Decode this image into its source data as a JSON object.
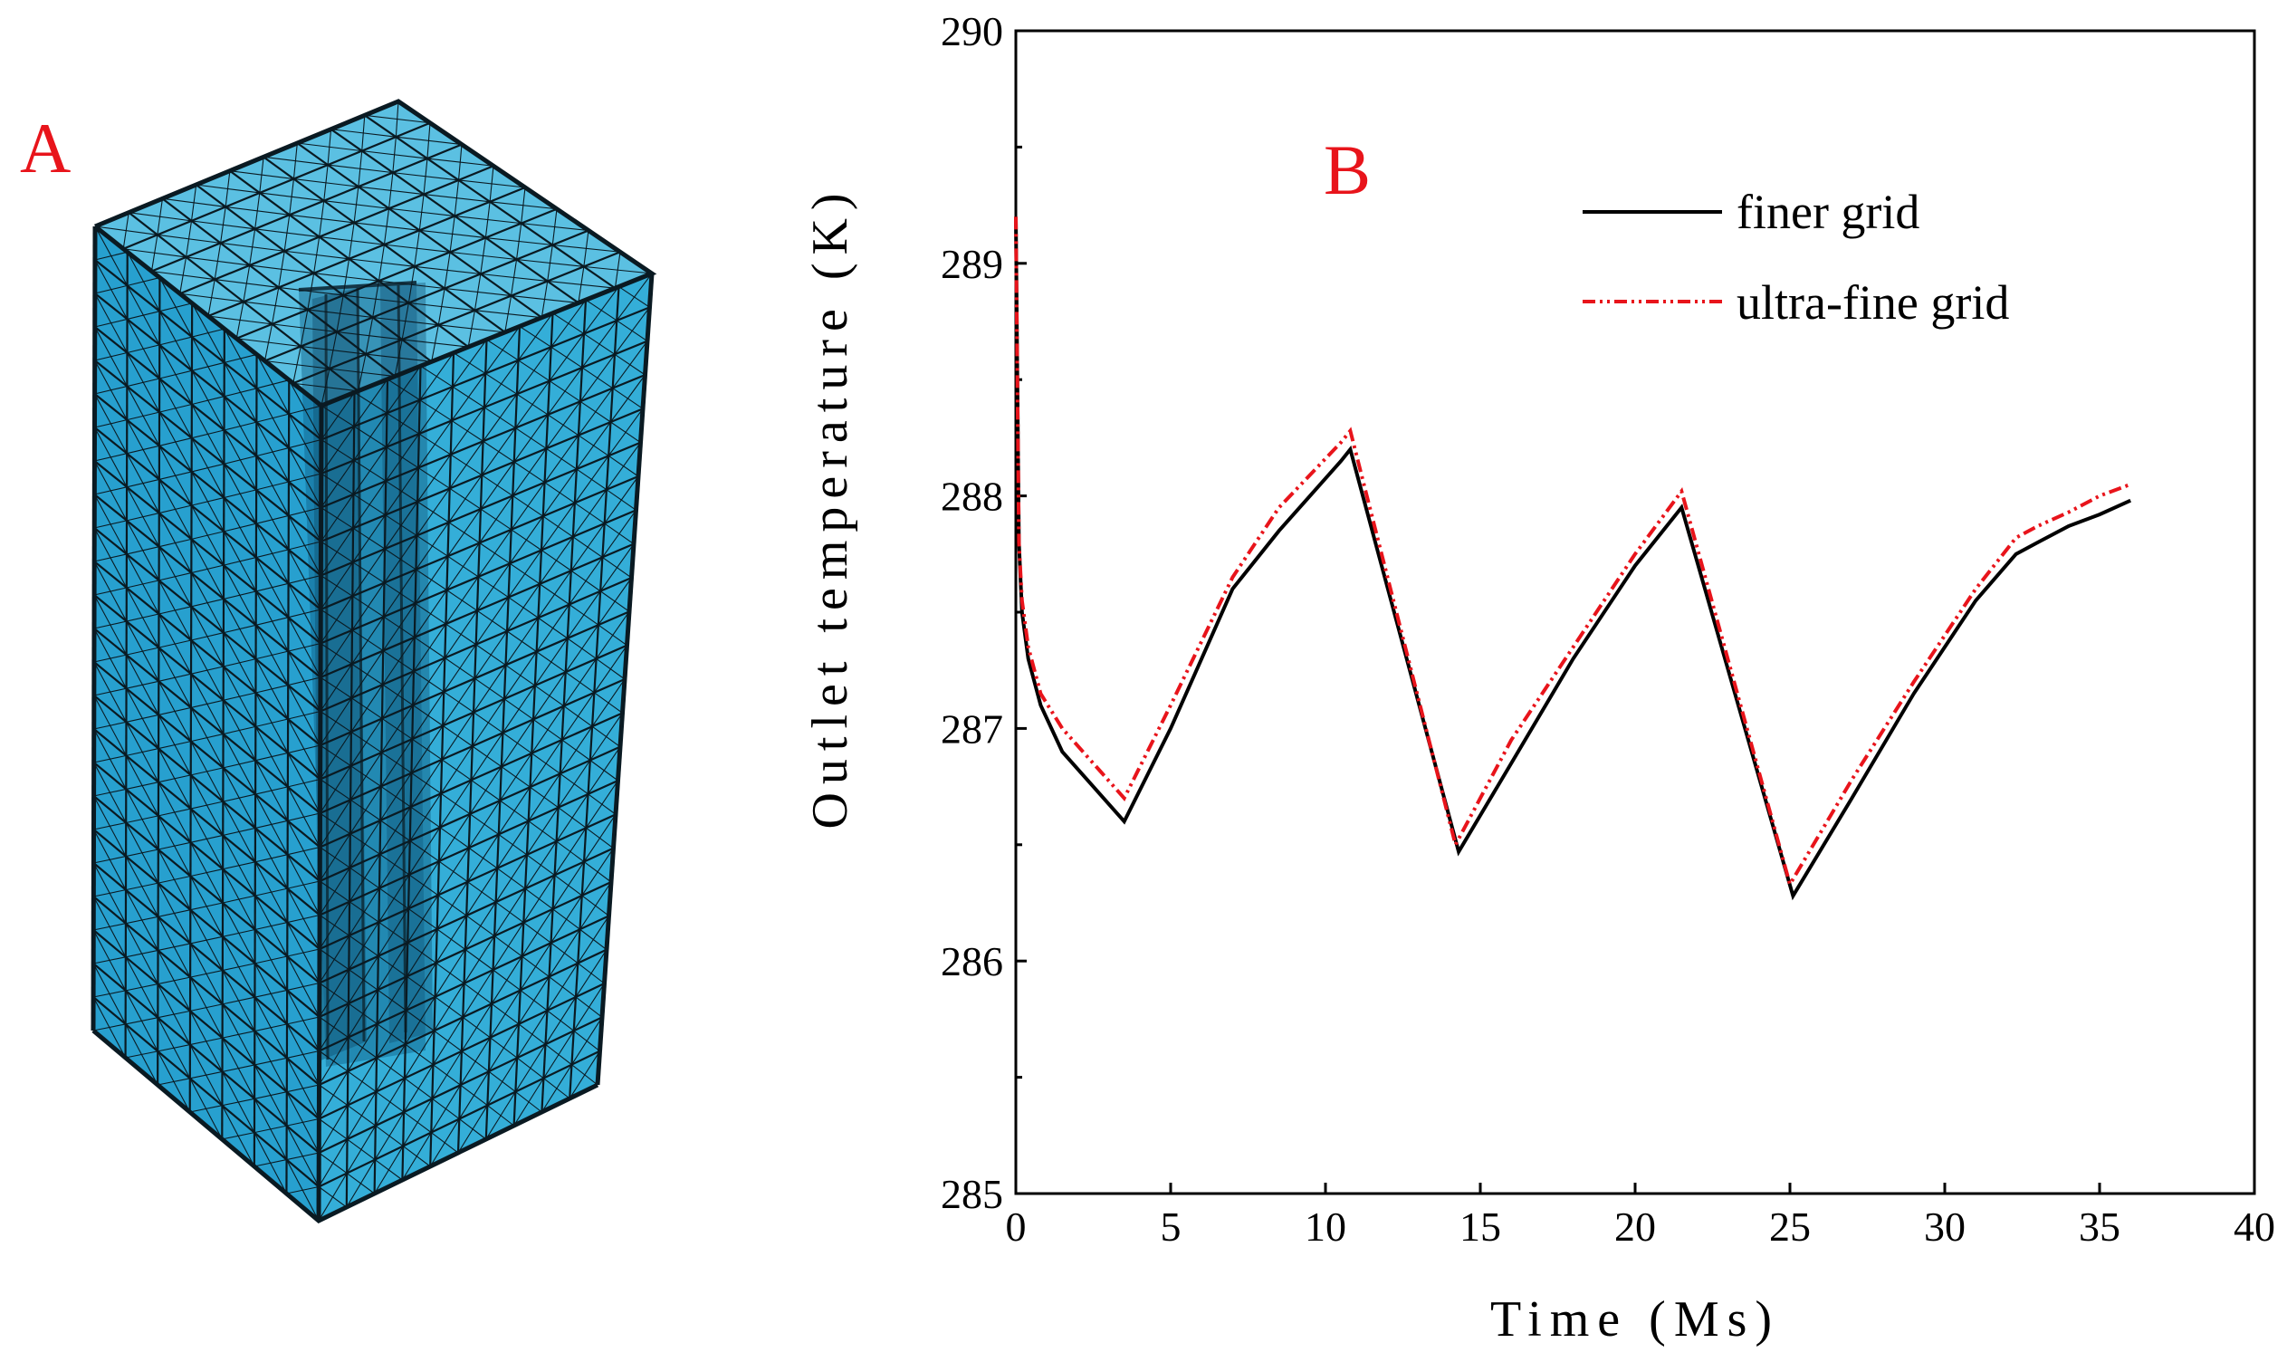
{
  "panels": {
    "a_label": "A",
    "b_label": "B",
    "label_color": "#e8141b"
  },
  "mesh": {
    "fill_color": "#2ea3cf",
    "dark_color": "#0f5f86",
    "line_color": "#0a1a22"
  },
  "chart_data": {
    "type": "line",
    "title": "",
    "xlabel": "Time (Ms)",
    "ylabel": "Outlet temperature (K)",
    "xlim": [
      0,
      40
    ],
    "ylim": [
      285,
      290
    ],
    "xticks": [
      0,
      5,
      10,
      15,
      20,
      25,
      30,
      35,
      40
    ],
    "yticks": [
      285,
      286,
      287,
      288,
      289,
      290
    ],
    "legend_position": "top-right",
    "series": [
      {
        "name": "finer grid",
        "color": "#000000",
        "style": "solid",
        "x": [
          0,
          0.1,
          0.2,
          0.4,
          0.8,
          1.5,
          2.5,
          3.5,
          5,
          7,
          8.5,
          10.5,
          10.8,
          14.3,
          16,
          18,
          20,
          21.5,
          25.1,
          27,
          29,
          31,
          32.3,
          33,
          34,
          35,
          36
        ],
        "y": [
          289.2,
          287.8,
          287.5,
          287.3,
          287.1,
          286.9,
          286.75,
          286.6,
          287.0,
          287.6,
          287.85,
          288.15,
          288.2,
          286.47,
          286.85,
          287.3,
          287.7,
          287.95,
          286.28,
          286.7,
          287.15,
          287.55,
          287.75,
          287.8,
          287.87,
          287.92,
          287.98
        ]
      },
      {
        "name": "ultra-fine grid",
        "color": "#e8141b",
        "style": "dash-dot-dot",
        "x": [
          0,
          0.1,
          0.2,
          0.4,
          0.8,
          1.5,
          2.5,
          3.5,
          5,
          7,
          8.5,
          10.5,
          10.8,
          14.2,
          16,
          18,
          20,
          21.5,
          25.0,
          27,
          29,
          31,
          32.3,
          33,
          34,
          35,
          36
        ],
        "y": [
          289.2,
          287.8,
          287.55,
          287.35,
          287.15,
          287.0,
          286.85,
          286.7,
          287.1,
          287.65,
          287.95,
          288.23,
          288.28,
          286.5,
          286.95,
          287.35,
          287.75,
          288.02,
          286.33,
          286.78,
          287.2,
          287.6,
          287.82,
          287.87,
          287.93,
          288.0,
          288.05
        ]
      }
    ]
  }
}
